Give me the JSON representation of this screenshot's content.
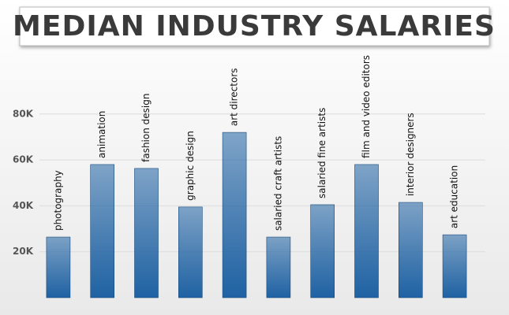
{
  "chart_data": {
    "type": "bar",
    "title": "MEDIAN INDUSTRY SALARIES",
    "categories": [
      "photography",
      "animation",
      "fashion design",
      "graphic design",
      "art directors",
      "salaried craft artists",
      "salaried fine artists",
      "film and video editors",
      "interior designers",
      "art education"
    ],
    "values": [
      26400,
      58000,
      56300,
      39500,
      72000,
      26400,
      40500,
      58000,
      41500,
      27400
    ],
    "color": "#1f62a3",
    "ylim": [
      0,
      100000
    ],
    "yticks": [
      {
        "value": 20000,
        "label": "20K"
      },
      {
        "value": 40000,
        "label": "40K"
      },
      {
        "value": 60000,
        "label": "60K"
      },
      {
        "value": 80000,
        "label": "80K"
      }
    ],
    "grid": true
  }
}
